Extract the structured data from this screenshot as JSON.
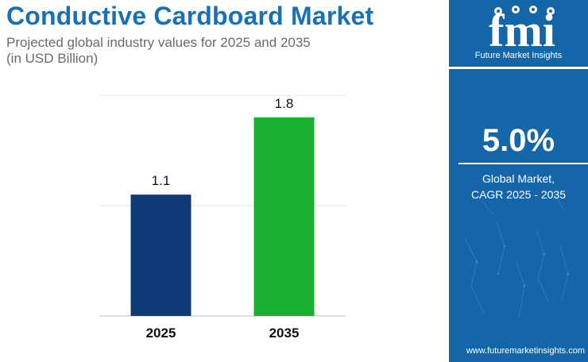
{
  "title": "Conductive Cardboard Market",
  "subtitle_line1": "Projected global industry values for 2025 and 2035",
  "subtitle_line2": "(in USD Billion)",
  "chart_data": {
    "type": "bar",
    "title": "Conductive Cardboard Market",
    "categories": [
      "2025",
      "2035"
    ],
    "values": [
      1.1,
      1.8
    ],
    "value_labels": [
      "1.1",
      "1.8"
    ],
    "bar_colors": [
      "#0d3a74",
      "#18b02e"
    ],
    "ylim": [
      0,
      2.0
    ],
    "grid": true,
    "xlabel": "",
    "ylabel": ""
  },
  "brand": {
    "logo_letters": "fmi",
    "tagline": "Future Market Insights",
    "panel_color": "#1466a8"
  },
  "cagr": {
    "value": "5.0%",
    "label_line1": "Global Market,",
    "label_line2": "CAGR 2025 - 2035"
  },
  "website": "www.futuremarketinsights.com"
}
